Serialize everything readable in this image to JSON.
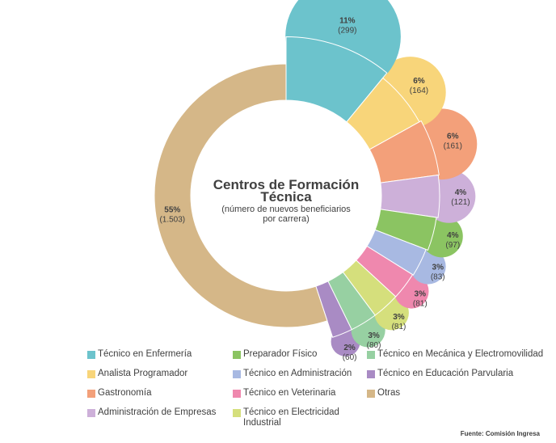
{
  "chart_data": {
    "type": "pie",
    "title": "Centros de Formación Técnica",
    "subtitle": "(número de nuevos beneficiarios por carrera)",
    "legend_position": "bottom",
    "slices": [
      {
        "name": "Técnico en Enfermería",
        "value": 299,
        "percent": "11%",
        "count_label": "(299)",
        "color": "#6cc3cc"
      },
      {
        "name": "Analista Programador",
        "value": 164,
        "percent": "6%",
        "count_label": "(164)",
        "color": "#f8d57a"
      },
      {
        "name": "Gastronomía",
        "value": 161,
        "percent": "6%",
        "count_label": "(161)",
        "color": "#f3a07a"
      },
      {
        "name": "Administración de Empresas",
        "value": 121,
        "percent": "4%",
        "count_label": "(121)",
        "color": "#cdb0d9"
      },
      {
        "name": "Preparador Físico",
        "value": 97,
        "percent": "4%",
        "count_label": "(97)",
        "color": "#8bc462"
      },
      {
        "name": "Técnico en Administración",
        "value": 83,
        "percent": "3%",
        "count_label": "(83)",
        "color": "#a8b9e2"
      },
      {
        "name": "Técnico en Veterinaria",
        "value": 81,
        "percent": "3%",
        "count_label": "(81)",
        "color": "#ef88ae"
      },
      {
        "name": "Técnico en Electricidad Industrial",
        "value": 81,
        "percent": "3%",
        "count_label": "(81)",
        "color": "#d5df7c"
      },
      {
        "name": "Técnico en Mecánica y Electromovilidad",
        "value": 80,
        "percent": "3%",
        "count_label": "(80)",
        "color": "#97d0a2"
      },
      {
        "name": "Técnico en Educación Parvularia",
        "value": 60,
        "percent": "2%",
        "count_label": "(60)",
        "color": "#a98bc4"
      },
      {
        "name": "Otras",
        "value": 1503,
        "percent": "55%",
        "count_label": "(1.503)",
        "color": "#d5b788"
      }
    ],
    "legend": [
      {
        "label": "Técnico en Enfermería",
        "color": "#6cc3cc"
      },
      {
        "label": "Analista Programador",
        "color": "#f8d57a"
      },
      {
        "label": "Gastronomía",
        "color": "#f3a07a"
      },
      {
        "label": "Administración de Empresas",
        "color": "#cdb0d9"
      },
      {
        "label": "Preparador Físico",
        "color": "#8bc462"
      },
      {
        "label": "Técnico en Administración",
        "color": "#a8b9e2"
      },
      {
        "label": "Técnico en Veterinaria",
        "color": "#ef88ae"
      },
      {
        "label": "Técnico en Electricidad Industrial",
        "color": "#d5df7c"
      },
      {
        "label": "Técnico en Mecánica y Electromovilidad",
        "color": "#97d0a2"
      },
      {
        "label": "Técnico en Educación Parvularia",
        "color": "#a98bc4"
      },
      {
        "label": "Otras",
        "color": "#d5b788"
      }
    ]
  },
  "source": "Fuente: Comisión Ingresa"
}
